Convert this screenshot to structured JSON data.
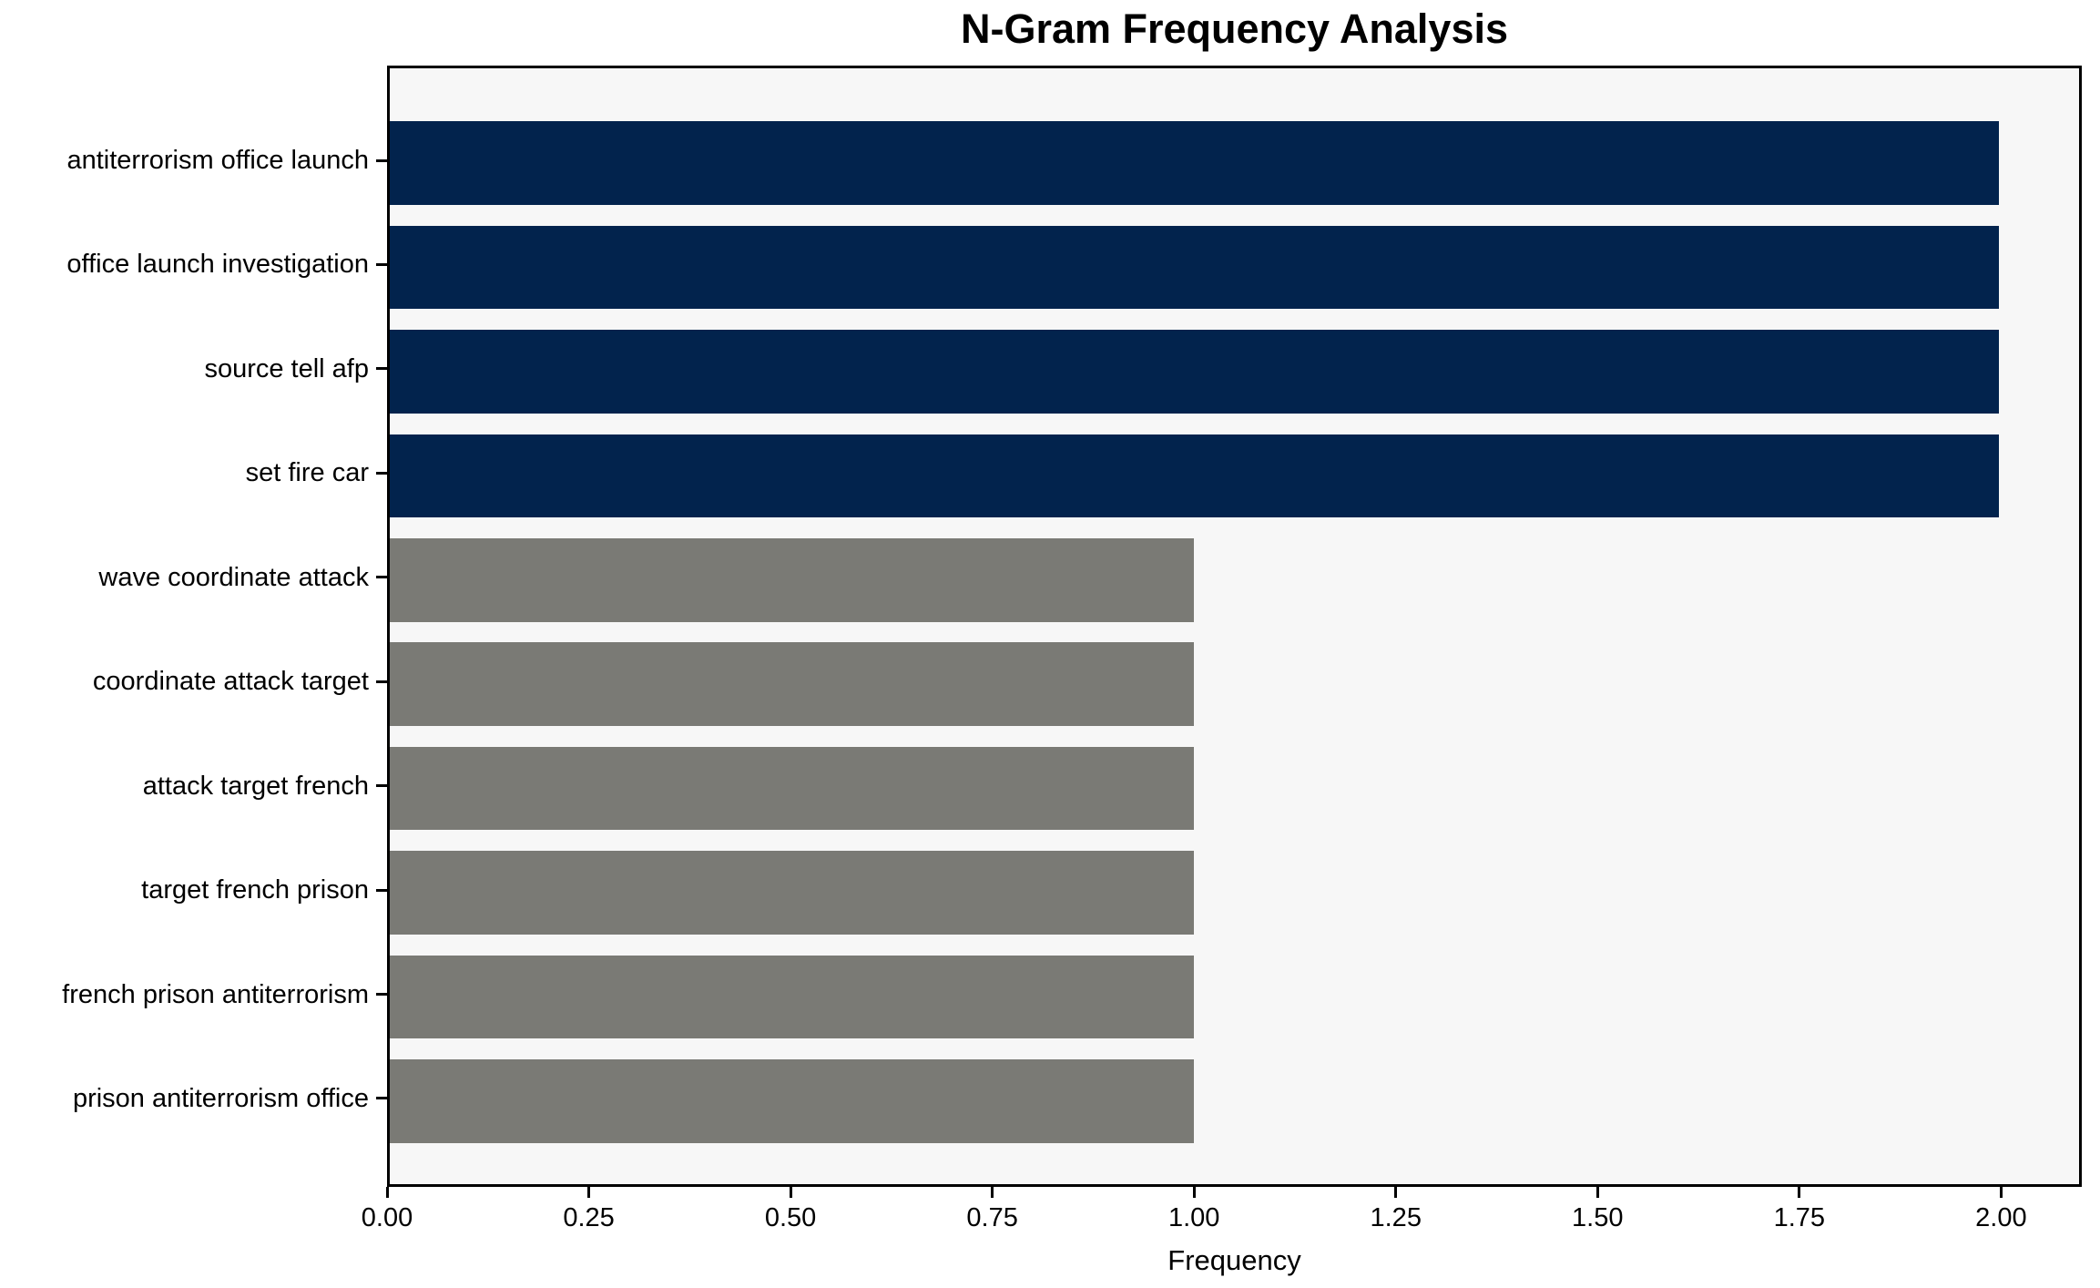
{
  "chart_data": {
    "type": "bar",
    "orientation": "horizontal",
    "title": "N-Gram Frequency Analysis",
    "xlabel": "Frequency",
    "ylabel": "",
    "categories": [
      "antiterrorism office launch",
      "office launch investigation",
      "source tell afp",
      "set fire car",
      "wave coordinate attack",
      "coordinate attack target",
      "attack target french",
      "target french prison",
      "french prison antiterrorism",
      "prison antiterrorism office"
    ],
    "values": [
      2.0,
      2.0,
      2.0,
      2.0,
      1.0,
      1.0,
      1.0,
      1.0,
      1.0,
      1.0
    ],
    "xlim": [
      0,
      2.1
    ],
    "x_tick_labels": [
      "0.00",
      "0.25",
      "0.50",
      "0.75",
      "1.00",
      "1.25",
      "1.50",
      "1.75",
      "2.00"
    ],
    "x_tick_values": [
      0,
      0.25,
      0.5,
      0.75,
      1.0,
      1.25,
      1.5,
      1.75,
      2.0
    ],
    "grid": false,
    "legend": null,
    "bar_height_fraction": 0.8,
    "colors": {
      "bar_color_by_value": {
        "2": "#02234d",
        "1": "#7a7a75"
      },
      "plot_background": "#f7f7f7",
      "figure_background": "#ffffff",
      "axis": "#000000",
      "text": "#000000"
    }
  }
}
